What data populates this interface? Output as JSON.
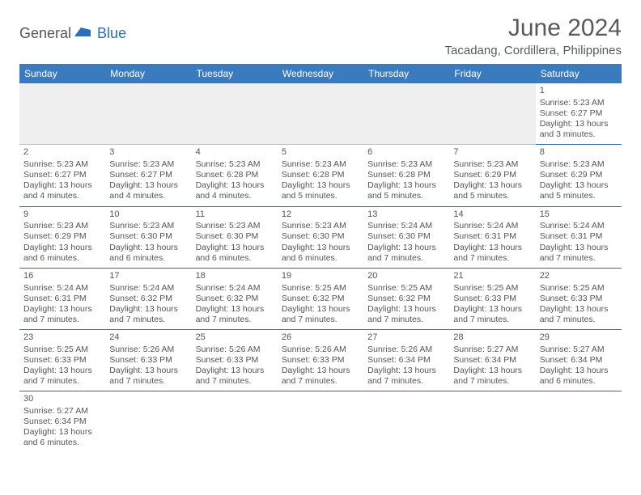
{
  "brand": {
    "part1": "General",
    "part2": "Blue"
  },
  "title": "June 2024",
  "location": "Tacadang, Cordillera, Philippines",
  "colors": {
    "header_bg": "#3a7bc0",
    "header_text": "#ffffff",
    "row_border": "#2d6aa8",
    "blank_bg": "#efefef",
    "text": "#555555",
    "brand_blue": "#2a6db8"
  },
  "weekdays": [
    "Sunday",
    "Monday",
    "Tuesday",
    "Wednesday",
    "Thursday",
    "Friday",
    "Saturday"
  ],
  "weeks": [
    [
      null,
      null,
      null,
      null,
      null,
      null,
      {
        "d": "1",
        "sr": "5:23 AM",
        "ss": "6:27 PM",
        "dl": "13 hours and 3 minutes."
      }
    ],
    [
      {
        "d": "2",
        "sr": "5:23 AM",
        "ss": "6:27 PM",
        "dl": "13 hours and 4 minutes."
      },
      {
        "d": "3",
        "sr": "5:23 AM",
        "ss": "6:27 PM",
        "dl": "13 hours and 4 minutes."
      },
      {
        "d": "4",
        "sr": "5:23 AM",
        "ss": "6:28 PM",
        "dl": "13 hours and 4 minutes."
      },
      {
        "d": "5",
        "sr": "5:23 AM",
        "ss": "6:28 PM",
        "dl": "13 hours and 5 minutes."
      },
      {
        "d": "6",
        "sr": "5:23 AM",
        "ss": "6:28 PM",
        "dl": "13 hours and 5 minutes."
      },
      {
        "d": "7",
        "sr": "5:23 AM",
        "ss": "6:29 PM",
        "dl": "13 hours and 5 minutes."
      },
      {
        "d": "8",
        "sr": "5:23 AM",
        "ss": "6:29 PM",
        "dl": "13 hours and 5 minutes."
      }
    ],
    [
      {
        "d": "9",
        "sr": "5:23 AM",
        "ss": "6:29 PM",
        "dl": "13 hours and 6 minutes."
      },
      {
        "d": "10",
        "sr": "5:23 AM",
        "ss": "6:30 PM",
        "dl": "13 hours and 6 minutes."
      },
      {
        "d": "11",
        "sr": "5:23 AM",
        "ss": "6:30 PM",
        "dl": "13 hours and 6 minutes."
      },
      {
        "d": "12",
        "sr": "5:23 AM",
        "ss": "6:30 PM",
        "dl": "13 hours and 6 minutes."
      },
      {
        "d": "13",
        "sr": "5:24 AM",
        "ss": "6:30 PM",
        "dl": "13 hours and 7 minutes."
      },
      {
        "d": "14",
        "sr": "5:24 AM",
        "ss": "6:31 PM",
        "dl": "13 hours and 7 minutes."
      },
      {
        "d": "15",
        "sr": "5:24 AM",
        "ss": "6:31 PM",
        "dl": "13 hours and 7 minutes."
      }
    ],
    [
      {
        "d": "16",
        "sr": "5:24 AM",
        "ss": "6:31 PM",
        "dl": "13 hours and 7 minutes."
      },
      {
        "d": "17",
        "sr": "5:24 AM",
        "ss": "6:32 PM",
        "dl": "13 hours and 7 minutes."
      },
      {
        "d": "18",
        "sr": "5:24 AM",
        "ss": "6:32 PM",
        "dl": "13 hours and 7 minutes."
      },
      {
        "d": "19",
        "sr": "5:25 AM",
        "ss": "6:32 PM",
        "dl": "13 hours and 7 minutes."
      },
      {
        "d": "20",
        "sr": "5:25 AM",
        "ss": "6:32 PM",
        "dl": "13 hours and 7 minutes."
      },
      {
        "d": "21",
        "sr": "5:25 AM",
        "ss": "6:33 PM",
        "dl": "13 hours and 7 minutes."
      },
      {
        "d": "22",
        "sr": "5:25 AM",
        "ss": "6:33 PM",
        "dl": "13 hours and 7 minutes."
      }
    ],
    [
      {
        "d": "23",
        "sr": "5:25 AM",
        "ss": "6:33 PM",
        "dl": "13 hours and 7 minutes."
      },
      {
        "d": "24",
        "sr": "5:26 AM",
        "ss": "6:33 PM",
        "dl": "13 hours and 7 minutes."
      },
      {
        "d": "25",
        "sr": "5:26 AM",
        "ss": "6:33 PM",
        "dl": "13 hours and 7 minutes."
      },
      {
        "d": "26",
        "sr": "5:26 AM",
        "ss": "6:33 PM",
        "dl": "13 hours and 7 minutes."
      },
      {
        "d": "27",
        "sr": "5:26 AM",
        "ss": "6:34 PM",
        "dl": "13 hours and 7 minutes."
      },
      {
        "d": "28",
        "sr": "5:27 AM",
        "ss": "6:34 PM",
        "dl": "13 hours and 7 minutes."
      },
      {
        "d": "29",
        "sr": "5:27 AM",
        "ss": "6:34 PM",
        "dl": "13 hours and 6 minutes."
      }
    ],
    [
      {
        "d": "30",
        "sr": "5:27 AM",
        "ss": "6:34 PM",
        "dl": "13 hours and 6 minutes."
      },
      null,
      null,
      null,
      null,
      null,
      null
    ]
  ],
  "labels": {
    "sunrise": "Sunrise:",
    "sunset": "Sunset:",
    "daylight": "Daylight:"
  }
}
